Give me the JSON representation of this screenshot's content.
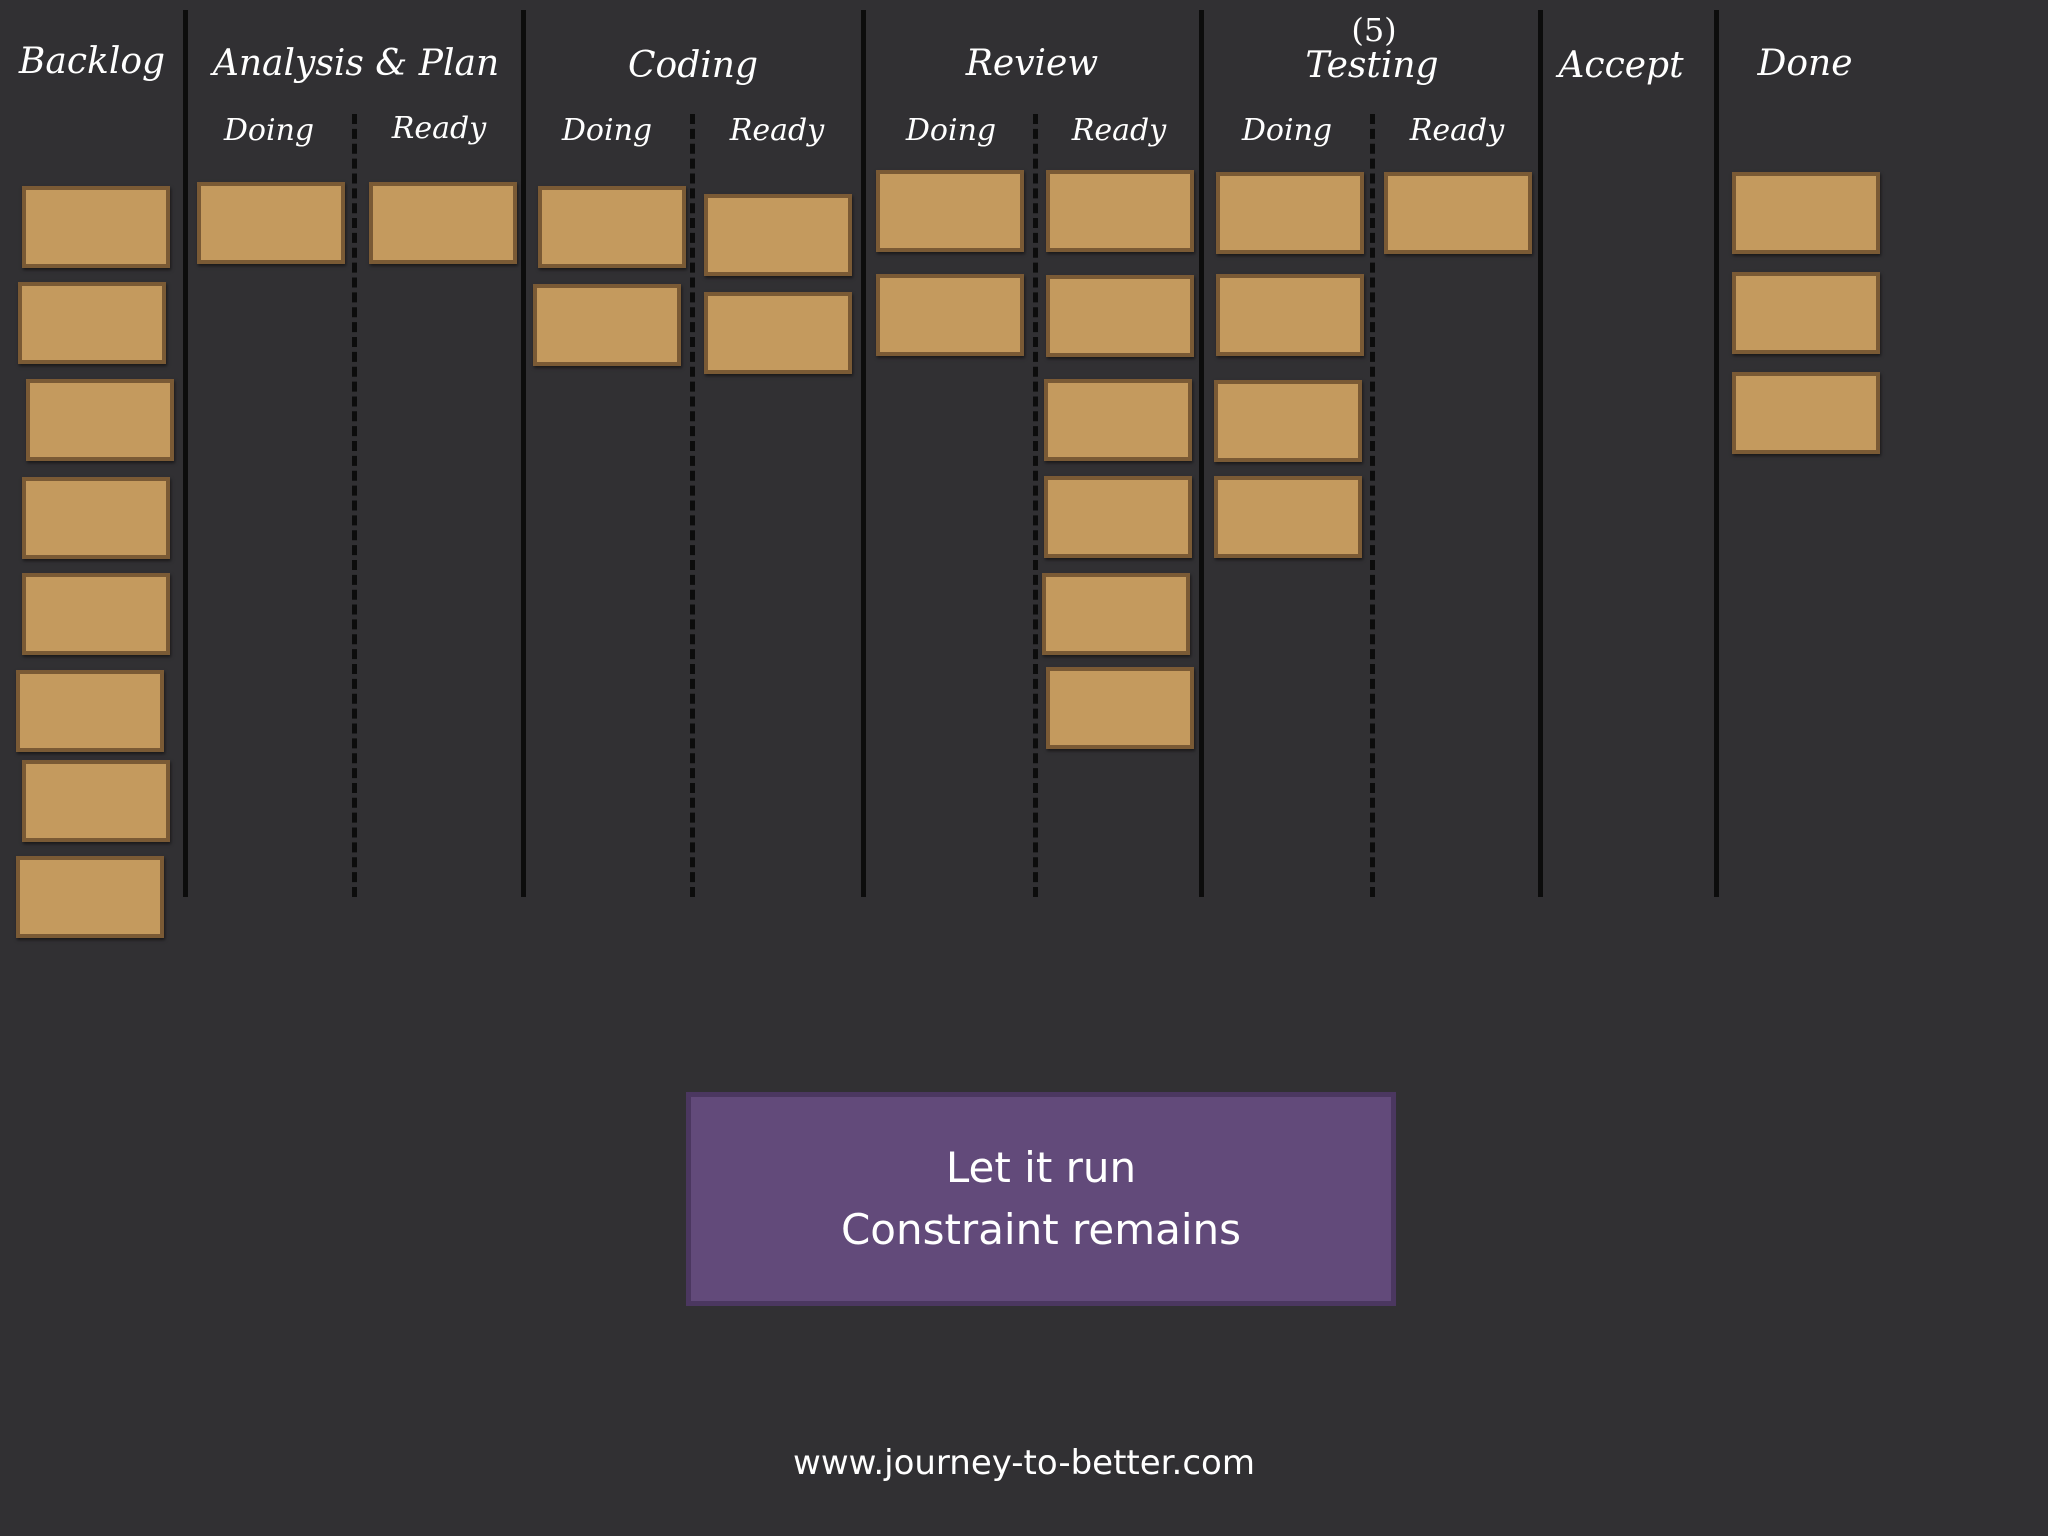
{
  "board": {
    "columns": [
      {
        "id": "backlog",
        "title": "Backlog"
      },
      {
        "id": "analysis",
        "title": "Analysis & Plan",
        "subcolumns": [
          {
            "id": "analysis-doing",
            "label": "Doing"
          },
          {
            "id": "analysis-ready",
            "label": "Ready"
          }
        ]
      },
      {
        "id": "coding",
        "title": "Coding",
        "subcolumns": [
          {
            "id": "coding-doing",
            "label": "Doing"
          },
          {
            "id": "coding-ready",
            "label": "Ready"
          }
        ]
      },
      {
        "id": "review",
        "title": "Review",
        "subcolumns": [
          {
            "id": "review-doing",
            "label": "Doing"
          },
          {
            "id": "review-ready",
            "label": "Ready"
          }
        ]
      },
      {
        "id": "testing",
        "title": "Testing",
        "wip_limit": "(5)",
        "subcolumns": [
          {
            "id": "testing-doing",
            "label": "Doing"
          },
          {
            "id": "testing-ready",
            "label": "Ready"
          }
        ]
      },
      {
        "id": "accept",
        "title": "Accept"
      },
      {
        "id": "done",
        "title": "Done"
      }
    ],
    "card_counts": {
      "backlog": 8,
      "analysis-doing": 1,
      "analysis-ready": 1,
      "coding-doing": 2,
      "coding-ready": 2,
      "review-doing": 2,
      "review-ready": 6,
      "testing-doing": 4,
      "testing-ready": 1,
      "accept": 0,
      "done": 3
    },
    "colors": {
      "background": "#313033",
      "card": "#c49a5e",
      "card_border": "#7a5a35",
      "divider": "#0c0c0c"
    }
  },
  "message": {
    "line1": "Let it run",
    "line2": "Constraint remains",
    "color": "#624a7a"
  },
  "footer": {
    "url": "www.journey-to-better.com"
  }
}
